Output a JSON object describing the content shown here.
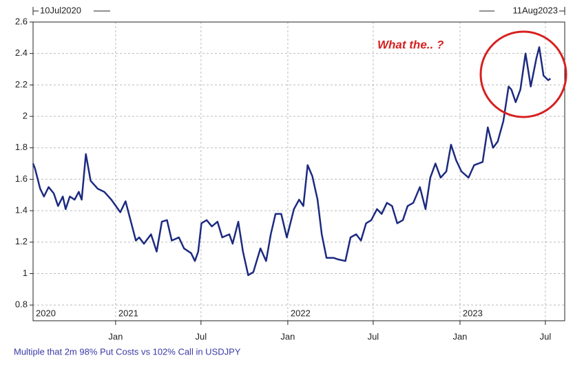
{
  "chart_data": {
    "type": "line",
    "start_label": "10Jul2020",
    "end_label": "11Aug2023",
    "annotation": "What the.. ?",
    "caption": "Multiple that 2m 98% Put  Costs vs 102% Call in USDJPY",
    "color": "#1c2a80",
    "grid": true,
    "xlim": [
      "2020-07-10",
      "2023-08-11"
    ],
    "xticks": [
      {
        "value": "2021-01-01",
        "label": "Jan"
      },
      {
        "value": "2021-07-01",
        "label": "Jul"
      },
      {
        "value": "2022-01-01",
        "label": "Jan"
      },
      {
        "value": "2022-07-01",
        "label": "Jul"
      },
      {
        "value": "2023-01-01",
        "label": "Jan"
      },
      {
        "value": "2023-07-01",
        "label": "Jul"
      }
    ],
    "year_labels": [
      {
        "value": "2020-07-10",
        "label": "2020"
      },
      {
        "value": "2021-01-01",
        "label": "2021"
      },
      {
        "value": "2022-01-01",
        "label": "2022"
      },
      {
        "value": "2023-01-01",
        "label": "2023"
      }
    ],
    "ylim": [
      0.7,
      2.6
    ],
    "yticks": [
      0.8,
      1,
      1.2,
      1.4,
      1.6,
      1.8,
      2,
      2.2,
      2.4,
      2.6
    ],
    "x": [
      "2020-07-10",
      "2020-07-14",
      "2020-07-25",
      "2020-08-02",
      "2020-08-12",
      "2020-08-23",
      "2020-09-01",
      "2020-09-11",
      "2020-09-17",
      "2020-09-26",
      "2020-10-06",
      "2020-10-15",
      "2020-10-21",
      "2020-10-30",
      "2020-11-09",
      "2020-11-24",
      "2020-12-08",
      "2020-12-23",
      "2021-01-11",
      "2021-01-22",
      "2021-01-29",
      "2021-02-13",
      "2021-02-20",
      "2021-03-02",
      "2021-03-17",
      "2021-03-29",
      "2021-04-09",
      "2021-04-20",
      "2021-04-30",
      "2021-05-15",
      "2021-05-26",
      "2021-06-10",
      "2021-06-18",
      "2021-06-25",
      "2021-07-02",
      "2021-07-13",
      "2021-07-24",
      "2021-08-05",
      "2021-08-15",
      "2021-08-30",
      "2021-09-06",
      "2021-09-18",
      "2021-09-28",
      "2021-10-09",
      "2021-10-20",
      "2021-11-04",
      "2021-11-16",
      "2021-11-26",
      "2021-12-06",
      "2021-12-18",
      "2021-12-30",
      "2022-01-14",
      "2022-01-25",
      "2022-02-03",
      "2022-02-12",
      "2022-02-22",
      "2022-03-05",
      "2022-03-14",
      "2022-03-24",
      "2022-04-08",
      "2022-04-18",
      "2022-05-03",
      "2022-05-14",
      "2022-05-26",
      "2022-06-05",
      "2022-06-16",
      "2022-06-27",
      "2022-07-09",
      "2022-07-19",
      "2022-07-30",
      "2022-08-10",
      "2022-08-21",
      "2022-09-02",
      "2022-09-12",
      "2022-09-24",
      "2022-10-08",
      "2022-10-20",
      "2022-10-30",
      "2022-11-10",
      "2022-11-21",
      "2022-12-03",
      "2022-12-13",
      "2022-12-24",
      "2023-01-04",
      "2023-01-19",
      "2023-01-31",
      "2023-02-18",
      "2023-03-01",
      "2023-03-12",
      "2023-03-22",
      "2023-04-03",
      "2023-04-14",
      "2023-04-20",
      "2023-04-29",
      "2023-05-09",
      "2023-05-20",
      "2023-05-31",
      "2023-06-12",
      "2023-06-18",
      "2023-06-27",
      "2023-07-07",
      "2023-07-12"
    ],
    "values": [
      1.7,
      1.67,
      1.54,
      1.49,
      1.55,
      1.51,
      1.43,
      1.49,
      1.41,
      1.49,
      1.47,
      1.52,
      1.47,
      1.76,
      1.59,
      1.54,
      1.52,
      1.47,
      1.39,
      1.46,
      1.38,
      1.21,
      1.23,
      1.19,
      1.25,
      1.14,
      1.33,
      1.34,
      1.21,
      1.23,
      1.16,
      1.13,
      1.08,
      1.14,
      1.32,
      1.34,
      1.3,
      1.33,
      1.23,
      1.25,
      1.19,
      1.33,
      1.14,
      0.99,
      1.01,
      1.16,
      1.08,
      1.25,
      1.38,
      1.38,
      1.23,
      1.41,
      1.47,
      1.43,
      1.69,
      1.62,
      1.47,
      1.25,
      1.1,
      1.1,
      1.09,
      1.08,
      1.23,
      1.25,
      1.21,
      1.32,
      1.34,
      1.41,
      1.38,
      1.45,
      1.43,
      1.32,
      1.34,
      1.43,
      1.45,
      1.55,
      1.41,
      1.61,
      1.7,
      1.61,
      1.65,
      1.82,
      1.72,
      1.65,
      1.61,
      1.69,
      1.71,
      1.93,
      1.8,
      1.84,
      1.97,
      2.19,
      2.17,
      2.09,
      2.17,
      2.4,
      2.19,
      2.37,
      2.44,
      2.26,
      2.23,
      2.24
    ]
  }
}
